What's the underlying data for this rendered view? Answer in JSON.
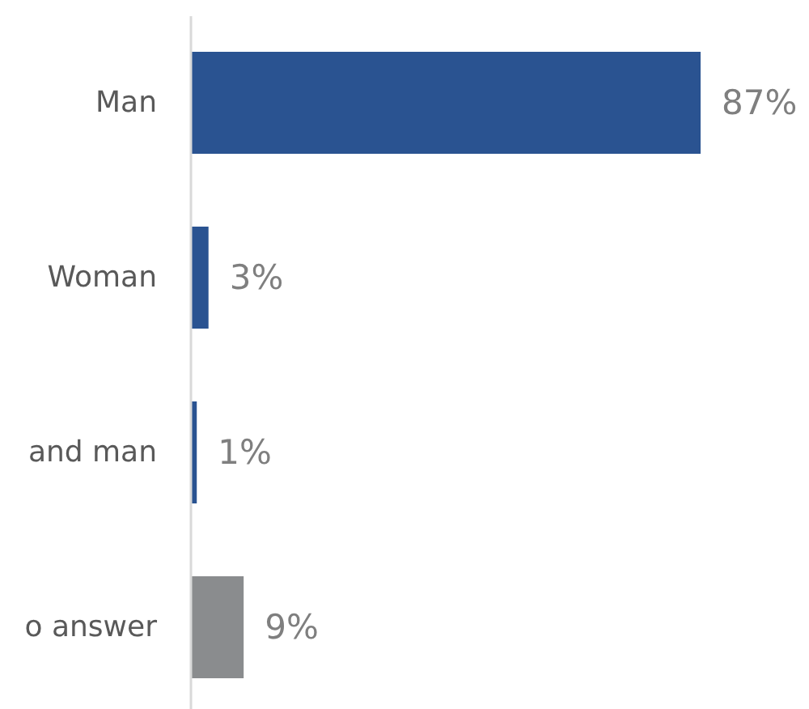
{
  "chart_data": {
    "type": "bar",
    "orientation": "horizontal",
    "categories": [
      "Man",
      "Woman",
      "and man",
      "o answer"
    ],
    "values": [
      87,
      3,
      1,
      9
    ],
    "colors": [
      "#2a5391",
      "#2a5391",
      "#2a5391",
      "#8a8c8e"
    ],
    "data_labels": true,
    "value_labels": [
      "87%",
      "3%",
      "1%",
      "9%"
    ],
    "tick_labels": "y"
  }
}
